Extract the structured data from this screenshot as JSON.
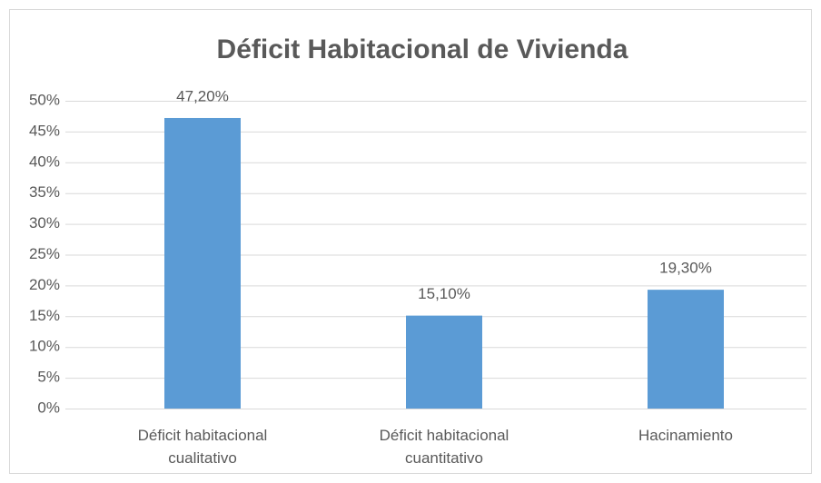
{
  "chart_data": {
    "type": "bar",
    "title": "Déficit Habitacional de Vivienda",
    "categories": [
      "Déficit habitacional cualitativo",
      "Déficit habitacional cuantitativo",
      "Hacinamiento"
    ],
    "values": [
      47.2,
      15.1,
      19.3
    ],
    "value_labels": [
      "47,20%",
      "15,10%",
      "19,30%"
    ],
    "color": "#5b9bd5",
    "ylim": [
      0,
      50
    ],
    "yticks": [
      {
        "value": 0,
        "label": "0%"
      },
      {
        "value": 5,
        "label": "5%"
      },
      {
        "value": 10,
        "label": "10%"
      },
      {
        "value": 15,
        "label": "15%"
      },
      {
        "value": 20,
        "label": "20%"
      },
      {
        "value": 25,
        "label": "25%"
      },
      {
        "value": 30,
        "label": "30%"
      },
      {
        "value": 35,
        "label": "35%"
      },
      {
        "value": 40,
        "label": "40%"
      },
      {
        "value": 45,
        "label": "45%"
      },
      {
        "value": 50,
        "label": "50%"
      }
    ],
    "grid": true
  }
}
